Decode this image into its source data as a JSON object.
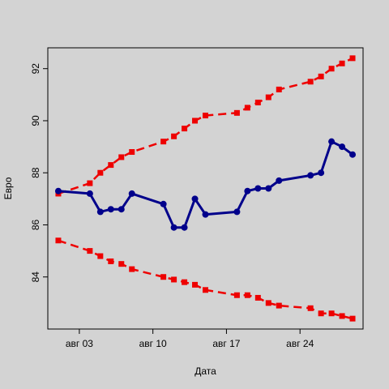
{
  "chart_data": {
    "type": "line",
    "xlabel": "Дата",
    "ylabel": "Евро",
    "xlim": [
      "2020-07-31",
      "2020-08-30"
    ],
    "ylim": [
      82.0,
      92.8
    ],
    "x_ticks": [
      {
        "date": "2020-08-03",
        "label": "авг 03"
      },
      {
        "date": "2020-08-10",
        "label": "авг 10"
      },
      {
        "date": "2020-08-17",
        "label": "авг 17"
      },
      {
        "date": "2020-08-24",
        "label": "авг 24"
      }
    ],
    "y_ticks": [
      84,
      86,
      88,
      90,
      92
    ],
    "grid": false,
    "background": "#d3d3d3",
    "x": [
      "2020-08-01",
      "2020-08-04",
      "2020-08-05",
      "2020-08-06",
      "2020-08-07",
      "2020-08-08",
      "2020-08-11",
      "2020-08-12",
      "2020-08-13",
      "2020-08-14",
      "2020-08-15",
      "2020-08-18",
      "2020-08-19",
      "2020-08-20",
      "2020-08-21",
      "2020-08-22",
      "2020-08-25",
      "2020-08-26",
      "2020-08-27",
      "2020-08-28",
      "2020-08-29"
    ],
    "series": [
      {
        "role": "main",
        "color": "#00008b",
        "style": "solid",
        "values": [
          87.3,
          87.2,
          86.5,
          86.6,
          86.6,
          87.2,
          86.8,
          85.9,
          85.9,
          87.0,
          86.4,
          86.5,
          87.3,
          87.4,
          87.4,
          87.7,
          87.9,
          88.0,
          89.2,
          89.0,
          88.7
        ]
      },
      {
        "role": "upper",
        "color": "#ee0000",
        "style": "dashed",
        "values": [
          87.2,
          87.6,
          88.0,
          88.3,
          88.6,
          88.8,
          89.2,
          89.4,
          89.7,
          90.0,
          90.2,
          90.3,
          90.5,
          90.7,
          90.9,
          91.2,
          91.5,
          91.7,
          92.0,
          92.2,
          92.4
        ]
      },
      {
        "role": "lower",
        "color": "#ee0000",
        "style": "dashed",
        "values": [
          85.4,
          85.0,
          84.8,
          84.6,
          84.5,
          84.3,
          84.0,
          83.9,
          83.8,
          83.7,
          83.5,
          83.3,
          83.3,
          83.2,
          83.0,
          82.9,
          82.8,
          82.6,
          82.6,
          82.5,
          82.4
        ]
      }
    ]
  }
}
